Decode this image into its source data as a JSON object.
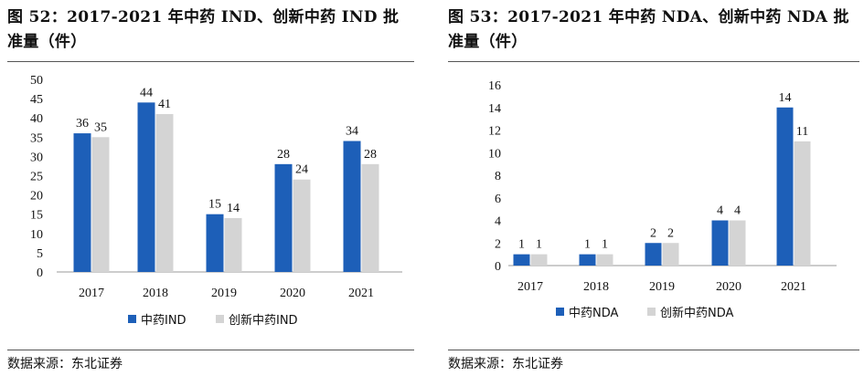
{
  "colors": {
    "primary": "#1d5fb8",
    "secondary": "#d4d4d4"
  },
  "chart_data": [
    {
      "type": "bar",
      "title": "图 52：2017-2021 年中药 IND、创新中药 IND 批准量（件）",
      "categories": [
        "2017",
        "2018",
        "2019",
        "2020",
        "2021"
      ],
      "series": [
        {
          "name": "中药IND",
          "values": [
            36,
            44,
            15,
            28,
            34
          ]
        },
        {
          "name": "创新中药IND",
          "values": [
            35,
            41,
            14,
            24,
            28
          ]
        }
      ],
      "ylim": [
        0,
        50
      ],
      "yticks": [
        0,
        5,
        10,
        15,
        20,
        25,
        30,
        35,
        40,
        45,
        50
      ],
      "grid": false,
      "legend": "bottom",
      "source": "数据来源：东北证券"
    },
    {
      "type": "bar",
      "title": "图 53：2017-2021 年中药 NDA、创新中药 NDA 批准量（件）",
      "categories": [
        "2017",
        "2018",
        "2019",
        "2020",
        "2021"
      ],
      "series": [
        {
          "name": "中药NDA",
          "values": [
            1,
            1,
            2,
            4,
            14
          ]
        },
        {
          "name": "创新中药NDA",
          "values": [
            1,
            1,
            2,
            4,
            11
          ]
        }
      ],
      "ylim": [
        0,
        16
      ],
      "yticks": [
        0,
        2,
        4,
        6,
        8,
        10,
        12,
        14,
        16
      ],
      "grid": false,
      "legend": "bottom",
      "source": "数据来源：东北证券"
    }
  ]
}
